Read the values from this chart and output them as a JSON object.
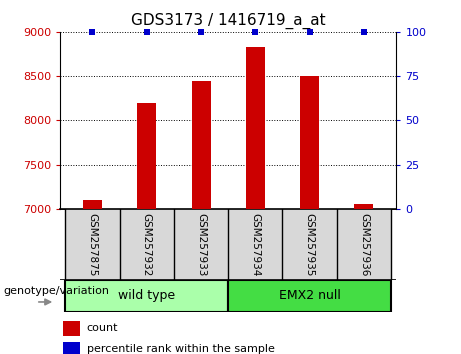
{
  "title": "GDS3173 / 1416719_a_at",
  "samples": [
    "GSM257875",
    "GSM257932",
    "GSM257933",
    "GSM257934",
    "GSM257935",
    "GSM257936"
  ],
  "counts": [
    7100,
    8200,
    8450,
    8830,
    8500,
    7055
  ],
  "percentiles": [
    100,
    100,
    100,
    100,
    100,
    100
  ],
  "ylim_left": [
    7000,
    9000
  ],
  "ylim_right": [
    0,
    100
  ],
  "yticks_left": [
    7000,
    7500,
    8000,
    8500,
    9000
  ],
  "yticks_right": [
    0,
    25,
    50,
    75,
    100
  ],
  "bar_color": "#cc0000",
  "percentile_color": "#0000cc",
  "bar_width": 0.35,
  "group_labels": [
    "wild type",
    "EMX2 null"
  ],
  "group_ranges": [
    [
      0,
      3
    ],
    [
      3,
      6
    ]
  ],
  "group_colors": [
    "#aaffaa",
    "#44dd44"
  ],
  "genotype_label": "genotype/variation",
  "legend_count_label": "count",
  "legend_percentile_label": "percentile rank within the sample",
  "title_fontsize": 11,
  "tick_fontsize": 8,
  "sample_fontsize": 7.5,
  "group_fontsize": 9,
  "legend_fontsize": 8,
  "geno_fontsize": 8
}
